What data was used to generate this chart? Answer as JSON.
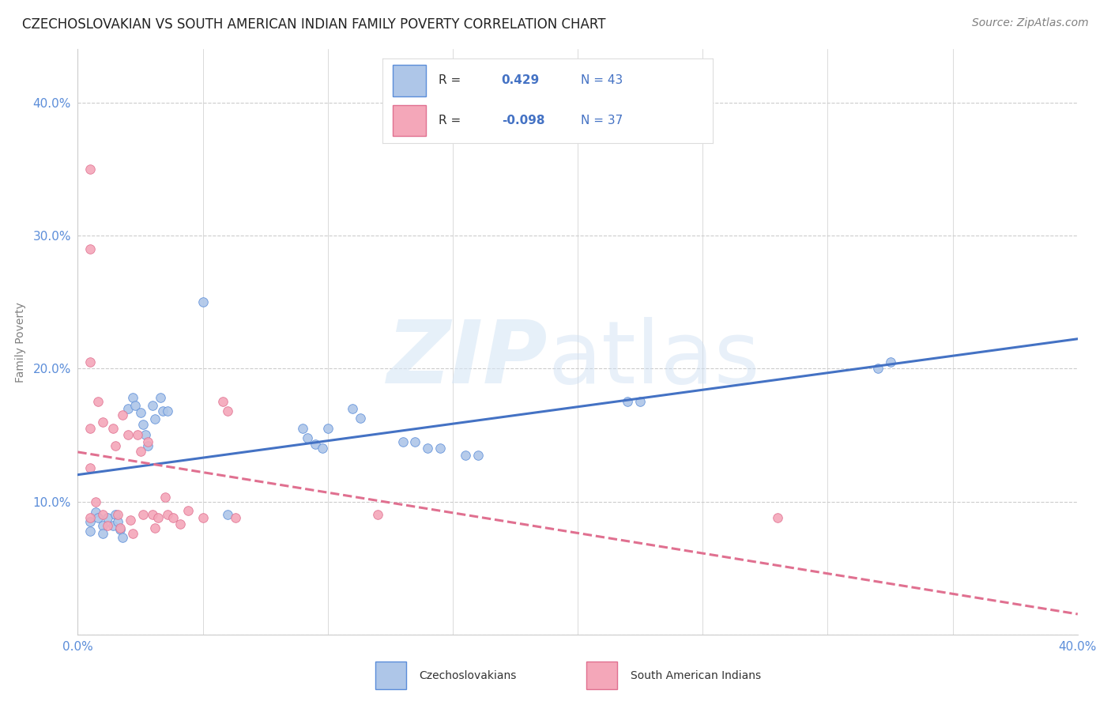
{
  "title": "CZECHOSLOVAKIAN VS SOUTH AMERICAN INDIAN FAMILY POVERTY CORRELATION CHART",
  "source_text": "Source: ZipAtlas.com",
  "ylabel": "Family Poverty",
  "xmin": 0.0,
  "xmax": 0.4,
  "ymin": 0.0,
  "ymax": 0.44,
  "ytick_vals": [
    0.0,
    0.1,
    0.2,
    0.3,
    0.4
  ],
  "xtick_vals": [
    0.0,
    0.05,
    0.1,
    0.15,
    0.2,
    0.25,
    0.3,
    0.35,
    0.4
  ],
  "r_czech": 0.429,
  "n_czech": 43,
  "r_south": -0.098,
  "n_south": 37,
  "blue_fill": "#aec6e8",
  "pink_fill": "#f4a7b9",
  "blue_edge": "#5b8dd9",
  "pink_edge": "#e07090",
  "blue_line": "#4472c4",
  "pink_line": "#e07090",
  "tick_color": "#5b8dd9",
  "grid_color": "#cccccc",
  "legend_label_czech": "Czechoslovakians",
  "legend_label_south": "South American Indians",
  "czech_points": [
    [
      0.005,
      0.085
    ],
    [
      0.005,
      0.078
    ],
    [
      0.007,
      0.092
    ],
    [
      0.008,
      0.088
    ],
    [
      0.01,
      0.082
    ],
    [
      0.01,
      0.076
    ],
    [
      0.012,
      0.088
    ],
    [
      0.014,
      0.082
    ],
    [
      0.015,
      0.09
    ],
    [
      0.016,
      0.085
    ],
    [
      0.017,
      0.079
    ],
    [
      0.018,
      0.073
    ],
    [
      0.02,
      0.17
    ],
    [
      0.022,
      0.178
    ],
    [
      0.023,
      0.172
    ],
    [
      0.025,
      0.167
    ],
    [
      0.026,
      0.158
    ],
    [
      0.027,
      0.15
    ],
    [
      0.028,
      0.142
    ],
    [
      0.03,
      0.172
    ],
    [
      0.031,
      0.162
    ],
    [
      0.033,
      0.178
    ],
    [
      0.034,
      0.168
    ],
    [
      0.036,
      0.168
    ],
    [
      0.05,
      0.25
    ],
    [
      0.06,
      0.09
    ],
    [
      0.09,
      0.155
    ],
    [
      0.092,
      0.148
    ],
    [
      0.095,
      0.143
    ],
    [
      0.098,
      0.14
    ],
    [
      0.1,
      0.155
    ],
    [
      0.11,
      0.17
    ],
    [
      0.113,
      0.163
    ],
    [
      0.13,
      0.145
    ],
    [
      0.135,
      0.145
    ],
    [
      0.14,
      0.14
    ],
    [
      0.145,
      0.14
    ],
    [
      0.155,
      0.135
    ],
    [
      0.16,
      0.135
    ],
    [
      0.22,
      0.175
    ],
    [
      0.225,
      0.175
    ],
    [
      0.32,
      0.2
    ],
    [
      0.325,
      0.205
    ]
  ],
  "south_points": [
    [
      0.005,
      0.35
    ],
    [
      0.005,
      0.29
    ],
    [
      0.005,
      0.205
    ],
    [
      0.005,
      0.155
    ],
    [
      0.005,
      0.125
    ],
    [
      0.008,
      0.175
    ],
    [
      0.01,
      0.16
    ],
    [
      0.01,
      0.09
    ],
    [
      0.012,
      0.082
    ],
    [
      0.014,
      0.155
    ],
    [
      0.015,
      0.142
    ],
    [
      0.016,
      0.09
    ],
    [
      0.017,
      0.08
    ],
    [
      0.018,
      0.165
    ],
    [
      0.02,
      0.15
    ],
    [
      0.021,
      0.086
    ],
    [
      0.022,
      0.076
    ],
    [
      0.024,
      0.15
    ],
    [
      0.025,
      0.138
    ],
    [
      0.026,
      0.09
    ],
    [
      0.028,
      0.145
    ],
    [
      0.03,
      0.09
    ],
    [
      0.031,
      0.08
    ],
    [
      0.032,
      0.088
    ],
    [
      0.035,
      0.103
    ],
    [
      0.036,
      0.09
    ],
    [
      0.038,
      0.088
    ],
    [
      0.041,
      0.083
    ],
    [
      0.044,
      0.093
    ],
    [
      0.05,
      0.088
    ],
    [
      0.058,
      0.175
    ],
    [
      0.06,
      0.168
    ],
    [
      0.063,
      0.088
    ],
    [
      0.12,
      0.09
    ],
    [
      0.28,
      0.088
    ],
    [
      0.005,
      0.088
    ],
    [
      0.007,
      0.1
    ]
  ],
  "title_fontsize": 12,
  "axis_label_fontsize": 10,
  "tick_fontsize": 11,
  "source_fontsize": 10
}
